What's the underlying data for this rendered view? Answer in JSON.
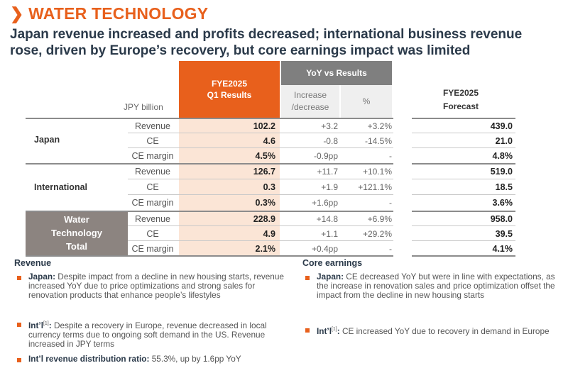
{
  "heading": "WATER TECHNOLOGY",
  "heading_arrow": "❯",
  "subtitle_line1": "Japan revenue increased and profits decreased; international business revenue",
  "subtitle_line2": "rose, driven by Europe’s recovery, but core earnings impact was limited",
  "table": {
    "unit": "JPY billion",
    "col_q1_line1": "FYE2025",
    "col_q1_line2": "Q1 Results",
    "col_yoy": "YoY vs Results",
    "col_increase_line1": "Increase",
    "col_increase_line2": "/decrease",
    "col_pct": "%",
    "col_fc_line1": "FYE2025",
    "col_fc_line2": "Forecast",
    "groups": [
      {
        "label": "Japan",
        "rows": [
          {
            "metric": "Revenue",
            "q1": "102.2",
            "inc": "+3.2",
            "pct": "+3.2%",
            "fc": "439.0"
          },
          {
            "metric": "CE",
            "q1": "4.6",
            "inc": "-0.8",
            "pct": "-14.5%",
            "fc": "21.0"
          },
          {
            "metric": "CE margin",
            "q1": "4.5%",
            "inc": "-0.9pp",
            "pct": "-",
            "fc": "4.8%"
          }
        ]
      },
      {
        "label": "International",
        "rows": [
          {
            "metric": "Revenue",
            "q1": "126.7",
            "inc": "+11.7",
            "pct": "+10.1%",
            "fc": "519.0"
          },
          {
            "metric": "CE",
            "q1": "0.3",
            "inc": "+1.9",
            "pct": "+121.1%",
            "fc": "18.5"
          },
          {
            "metric": "CE margin",
            "q1": "0.3%",
            "inc": "+1.6pp",
            "pct": "-",
            "fc": "3.6%"
          }
        ]
      },
      {
        "label_line1": "Water",
        "label_line2": "Technology",
        "label_line3": "Total",
        "rows": [
          {
            "metric": "Revenue",
            "q1": "228.9",
            "inc": "+14.8",
            "pct": "+6.9%",
            "fc": "958.0"
          },
          {
            "metric": "CE",
            "q1": "4.9",
            "inc": "+1.1",
            "pct": "+29.2%",
            "fc": "39.5"
          },
          {
            "metric": "CE margin",
            "q1": "2.1%",
            "inc": "+0.4pp",
            "pct": "-",
            "fc": "4.1%"
          }
        ]
      }
    ]
  },
  "revenue_section": {
    "title": "Revenue",
    "bullets": [
      {
        "bold": "Japan:",
        "text": " Despite impact from a decline in new housing starts, revenue increased YoY due to price optimizations and strong sales for renovation products that enhance people’s lifestyles"
      },
      {
        "bold": "Int’l",
        "sup": "[1]",
        "bold2": ":",
        "text": " Despite a recovery in Europe, revenue decreased in local currency terms due to ongoing soft demand in the US. Revenue increased in JPY terms"
      },
      {
        "bold": "Int’l revenue distribution ratio:",
        "text": " 55.3%, up by 1.6pp YoY"
      }
    ]
  },
  "core_section": {
    "title": "Core earnings",
    "bullets": [
      {
        "bold": "Japan:",
        "text": " CE decreased YoY but were in line with expectations, as the increase in renovation sales and price optimization offset the impact from the decline in new housing starts"
      },
      {
        "bold": "Int’l",
        "sup": "[1]",
        "bold2": ":",
        "text": " CE increased YoY due to recovery in demand in Europe"
      }
    ]
  },
  "colors": {
    "accent": "#e8601c",
    "accent_light": "#fbe5d6",
    "gray_header": "#7f7f7f",
    "total_block": "#8c8480",
    "navy": "#2b3a4a"
  }
}
